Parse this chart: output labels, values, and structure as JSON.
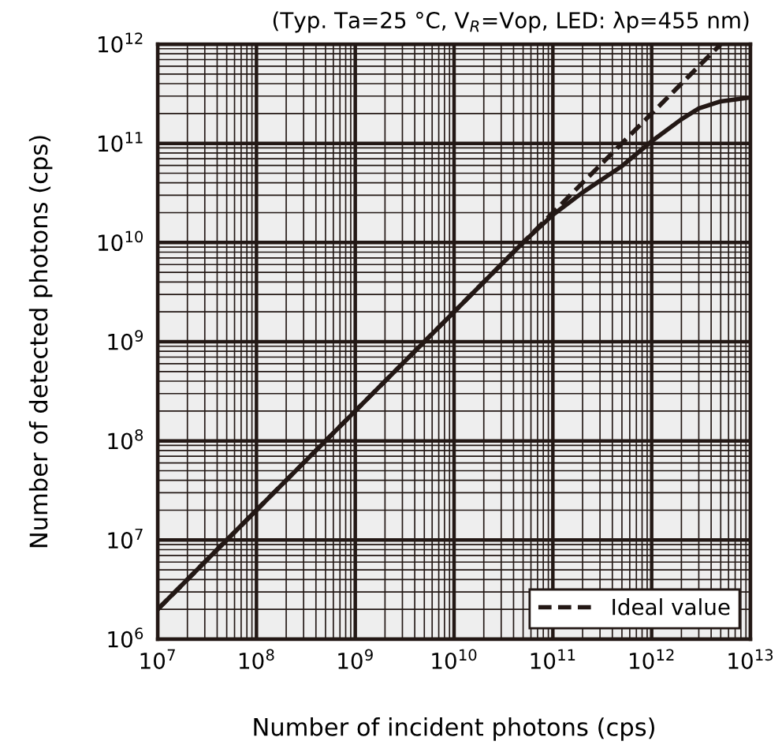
{
  "chart_data": {
    "type": "line",
    "xlabel": "Number of incident photons (cps)",
    "ylabel": "Number of detected photons (cps)",
    "annotations": [
      "(Typ. Ta=25 °C, V$_{R}$=Vop, LED: λp=455 nm)"
    ],
    "log": "xy",
    "grid": true,
    "legend": "bottom right",
    "xlim": [
      10000000.0,
      10000000000000.0
    ],
    "ylim": [
      1000000.0,
      1000000000000.0
    ],
    "xticks": [
      {
        "value": 10000000.0,
        "label": "10$^{7}$"
      },
      {
        "value": 100000000.0,
        "label": "10$^{8}$"
      },
      {
        "value": 1000000000.0,
        "label": "10$^{9}$"
      },
      {
        "value": 10000000000.0,
        "label": "10$^{10}$"
      },
      {
        "value": 100000000000.0,
        "label": "10$^{11}$"
      },
      {
        "value": 1000000000000.0,
        "label": "10$^{12}$"
      },
      {
        "value": 10000000000000.0,
        "label": "10$^{13}$"
      }
    ],
    "yticks": [
      {
        "value": 1000000.0,
        "label": "10$^{6}$"
      },
      {
        "value": 10000000.0,
        "label": "10$^{7}$"
      },
      {
        "value": 100000000.0,
        "label": "10$^{8}$"
      },
      {
        "value": 1000000000.0,
        "label": "10$^{9}$"
      },
      {
        "value": 10000000000.0,
        "label": "10$^{10}$"
      },
      {
        "value": 100000000000.0,
        "label": "10$^{11}$"
      },
      {
        "value": 1000000000000.0,
        "label": "10$^{12}$"
      }
    ],
    "series": [
      {
        "name": "Ideal value",
        "color": "#231815",
        "line_style": "dashed",
        "x": [
          10000000.0,
          10000000000.0,
          100000000000.0,
          5000000000000.0
        ],
        "values": [
          2000000.0,
          2000000000.0,
          20000000000.0,
          1000000000000.0
        ]
      },
      {
        "color": "#231815",
        "line_style": "solid",
        "x": [
          10000000.0,
          100000000.0,
          1000000000.0,
          10000000000.0,
          50000000000.0,
          100000000000.0,
          200000000000.0,
          500000000000.0,
          1000000000000.0,
          2000000000000.0,
          3000000000000.0,
          5000000000000.0,
          10000000000000.0
        ],
        "values": [
          2000000.0,
          20000000.0,
          200000000.0,
          2000000000.0,
          10000000000.0,
          19000000000.0,
          32000000000.0,
          59000000000.0,
          105000000000.0,
          175000000000.0,
          225000000000.0,
          265000000000.0,
          290000000000.0
        ]
      }
    ]
  }
}
